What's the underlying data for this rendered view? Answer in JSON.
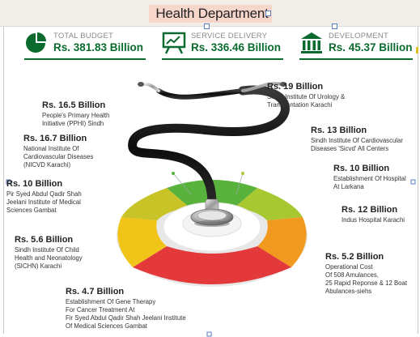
{
  "title": "Health Department",
  "kpis": [
    {
      "label": "TOTAL BUDGET",
      "value": "Rs. 381.83 Billion",
      "icon": "pie-chart-icon"
    },
    {
      "label": "SERVICE DELIVERY",
      "value": "Rs. 336.46 Billion",
      "icon": "presentation-board-icon"
    },
    {
      "label": "DEVELOPMENT",
      "value": "Rs. 45.37 Billion",
      "icon": "government-building-icon"
    }
  ],
  "allocations": {
    "urology": {
      "amount": "Rs. 19 Billion",
      "desc": [
        "Sindh Institute Of Urology &",
        "Transpantation Karachi"
      ]
    },
    "cardio_sicvd": {
      "amount": "Rs. 13 Billion",
      "desc": [
        "Sindh Institute Of Cardiovascular",
        "Diseases 'Sicvd' All Centers"
      ]
    },
    "hospital_larkana": {
      "amount": "Rs. 10 Billion",
      "desc": [
        "Establishment Of Hospital",
        "At Larkana"
      ]
    },
    "indus": {
      "amount": "Rs. 12 Billion",
      "desc": [
        "Indus Hospital Karachi"
      ]
    },
    "ambulances": {
      "amount": "Rs. 5.2 Billion",
      "desc": [
        "Operational Cost",
        "Of 508 Amulances,",
        "25 Rapid Reponse & 12 Boat",
        "Abulances-siehs"
      ]
    },
    "gene_therapy": {
      "amount": "Rs. 4.7 Billion",
      "desc": [
        "Establishment Of Gene Therapy",
        "For Cancer Treatment At",
        "Fir Syed Abdul Qadir Shah Jeelani Institute",
        "Of Medical Sciences Gambat"
      ]
    },
    "sichn": {
      "amount": "Rs. 5.6 Billion",
      "desc": [
        "Sindh Institute Of Child",
        "Health and Neonatology",
        "(SICHN) Karachi"
      ]
    },
    "gambat": {
      "amount": "Rs. 10 Billion",
      "desc": [
        "Pir Syed Abdul Qadir Shah",
        "Jeelani Institute of Medical",
        "Sciences Gambat"
      ]
    },
    "nicvd": {
      "amount": "Rs. 16.7 Billion",
      "desc": [
        "National Institute Of",
        "Cardiovascular Diseases",
        "(NICVD Karachi)"
      ]
    },
    "pphi": {
      "amount": "Rs. 16.5 Billion",
      "desc": [
        "People's Primary Health",
        "Initiative (PPHI) Sindh"
      ]
    }
  },
  "colors": {
    "kpi_green": "#0b6b2f",
    "ring_green": "#58b23c",
    "ring_lime": "#a8c832",
    "ring_yellow": "#f0c419",
    "ring_orange": "#f29a1f",
    "ring_red": "#e3393a"
  }
}
